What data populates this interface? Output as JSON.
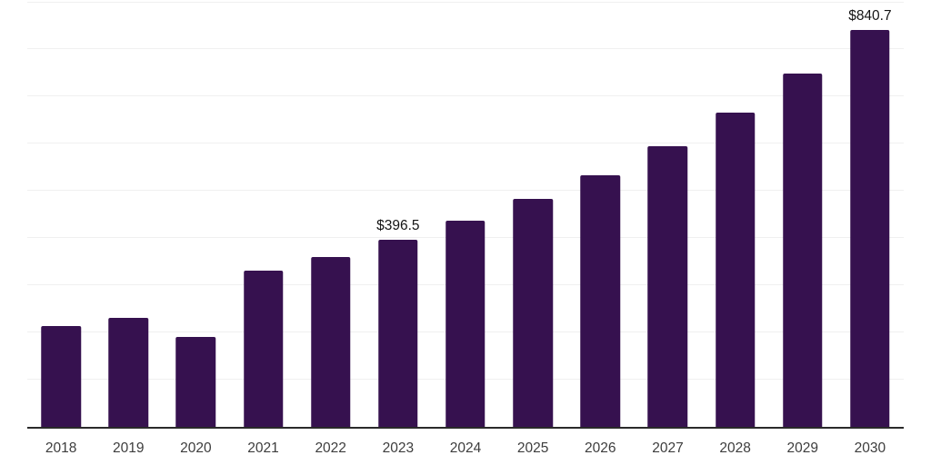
{
  "chart_data": {
    "type": "bar",
    "title": "",
    "xlabel": "",
    "ylabel": "",
    "categories": [
      "2018",
      "2019",
      "2020",
      "2021",
      "2022",
      "2023",
      "2024",
      "2025",
      "2026",
      "2027",
      "2028",
      "2029",
      "2030"
    ],
    "values": [
      213.0,
      231.5,
      190.5,
      330.5,
      359.2,
      396.5,
      437.3,
      482.8,
      533.5,
      594.5,
      666.2,
      748.1,
      840.7
    ],
    "value_labels": {
      "2023": "$396.5",
      "2030": "$840.7"
    },
    "ylim": [
      0,
      900
    ],
    "y_gridline_step": 100,
    "y_axis_tick_labels_visible": false,
    "grid": "horizontal",
    "legend_position": "none",
    "bar_color": "#36114F",
    "background_color": "#FFFFFF",
    "gridline_color": "#F0F0F0",
    "axis_line_color": "#2A2A2A",
    "x_tick_label_color": "#3D3D3D",
    "value_label_color": "#141414"
  }
}
